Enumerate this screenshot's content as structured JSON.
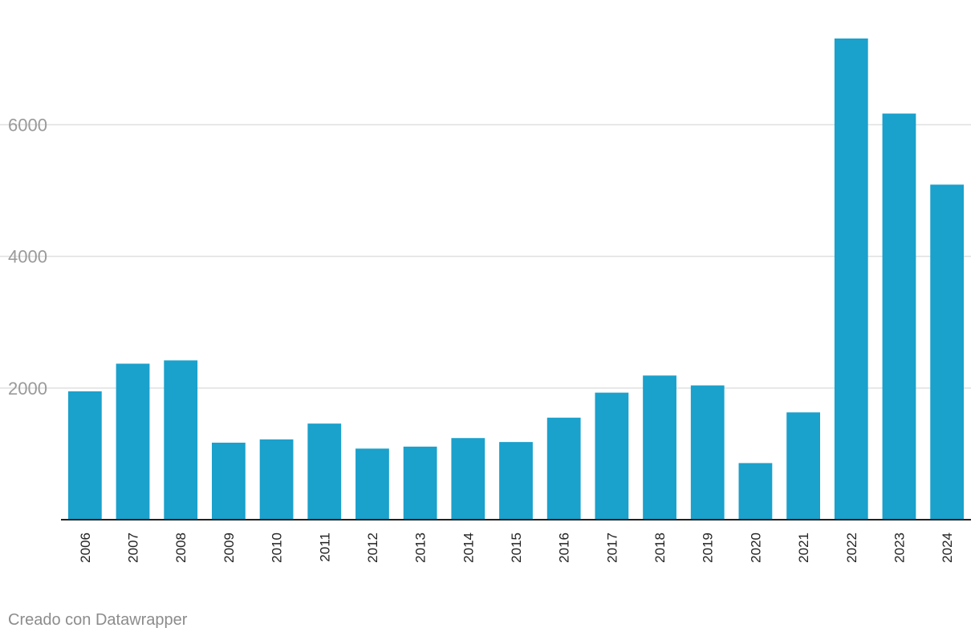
{
  "chart_data": {
    "type": "bar",
    "title": "",
    "xlabel": "",
    "ylabel": "",
    "categories": [
      "2006",
      "2007",
      "2008",
      "2009",
      "2010",
      "2011",
      "2012",
      "2013",
      "2014",
      "2015",
      "2016",
      "2017",
      "2018",
      "2019",
      "2020",
      "2021",
      "2022",
      "2023",
      "2024"
    ],
    "values": [
      1950,
      2370,
      2420,
      1170,
      1220,
      1460,
      1080,
      1110,
      1240,
      1180,
      1550,
      1930,
      2190,
      2040,
      860,
      1630,
      7310,
      6170,
      5090
    ],
    "ylim": [
      0,
      7310
    ],
    "yticks": [
      2000,
      4000,
      6000
    ],
    "grid": true,
    "bar_color": "#1aa1cc",
    "gridline_color": "#e0e0e0",
    "axis_color": "#222222",
    "tick_label_color": "#9a9a9a",
    "xtick_color": "#222222"
  },
  "footer": {
    "credit": "Creado con Datawrapper"
  }
}
